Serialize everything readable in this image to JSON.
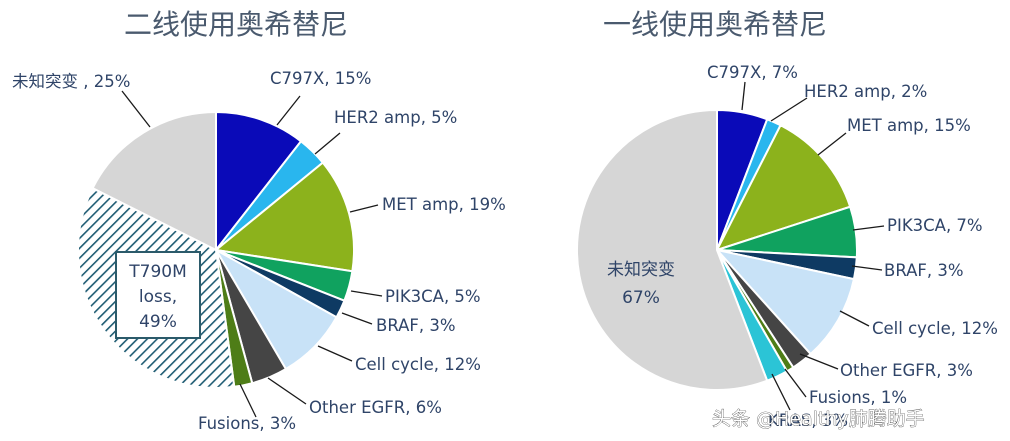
{
  "chart_data": [
    {
      "type": "pie",
      "title": "二线使用奥希替尼",
      "slices": [
        {
          "label": "C797X",
          "value": 15,
          "color": "#0a0ab8"
        },
        {
          "label": "HER2 amp",
          "value": 5,
          "color": "#29b6ee"
        },
        {
          "label": "MET amp",
          "value": 19,
          "color": "#8cb21c"
        },
        {
          "label": "PIK3CA",
          "value": 5,
          "color": "#10a25f"
        },
        {
          "label": "BRAF",
          "value": 3,
          "color": "#0e3a63"
        },
        {
          "label": "Cell cycle",
          "value": 12,
          "color": "#c8e2f7"
        },
        {
          "label": "Other EGFR",
          "value": 6,
          "color": "#454545"
        },
        {
          "label": "Fusions",
          "value": 3,
          "color": "#4e7d17"
        },
        {
          "label": "T790M loss",
          "value": 49,
          "color": "#1f5c73",
          "pattern": "hatch"
        },
        {
          "label": "未知突变",
          "value": 25,
          "color": "#d6d6d6"
        }
      ],
      "labels": [
        {
          "text": "C797X, 15%"
        },
        {
          "text": "HER2 amp, 5%"
        },
        {
          "text": "MET amp, 19%"
        },
        {
          "text": "PIK3CA, 5%"
        },
        {
          "text": "BRAF, 3%"
        },
        {
          "text": "Cell cycle, 12%"
        },
        {
          "text": "Other EGFR, 6%"
        },
        {
          "text": "Fusions, 3%"
        },
        {
          "text": "未知突变 , 25%"
        }
      ],
      "boxed_label": [
        "T790M",
        "loss,",
        "49%"
      ]
    },
    {
      "type": "pie",
      "title": "一线使用奥希替尼",
      "slices": [
        {
          "label": "C797X",
          "value": 7,
          "color": "#0a0ab8"
        },
        {
          "label": "HER2 amp",
          "value": 2,
          "color": "#29b6ee"
        },
        {
          "label": "MET amp",
          "value": 15,
          "color": "#8cb21c"
        },
        {
          "label": "PIK3CA",
          "value": 7,
          "color": "#10a25f"
        },
        {
          "label": "BRAF",
          "value": 3,
          "color": "#0e3a63"
        },
        {
          "label": "Cell cycle",
          "value": 12,
          "color": "#c8e2f7"
        },
        {
          "label": "Other EGFR",
          "value": 3,
          "color": "#454545"
        },
        {
          "label": "Fusions",
          "value": 1,
          "color": "#4e7d17"
        },
        {
          "label": "KRAS",
          "value": 3,
          "color": "#2bc4d6"
        },
        {
          "label": "未知突变",
          "value": 67,
          "color": "#d6d6d6"
        }
      ],
      "labels": [
        {
          "text": "C797X, 7%"
        },
        {
          "text": "HER2 amp, 2%"
        },
        {
          "text": "MET amp, 15%"
        },
        {
          "text": "PIK3CA, 7%"
        },
        {
          "text": "BRAF, 3%"
        },
        {
          "text": "Cell cycle, 12%"
        },
        {
          "text": "Other EGFR, 3%"
        },
        {
          "text": "Fusions, 1%"
        },
        {
          "text": "KRAS, 3%"
        }
      ],
      "inner_label": [
        "未知突变",
        "67%"
      ]
    }
  ],
  "watermark": "头条 @Healthy肺腾助手"
}
